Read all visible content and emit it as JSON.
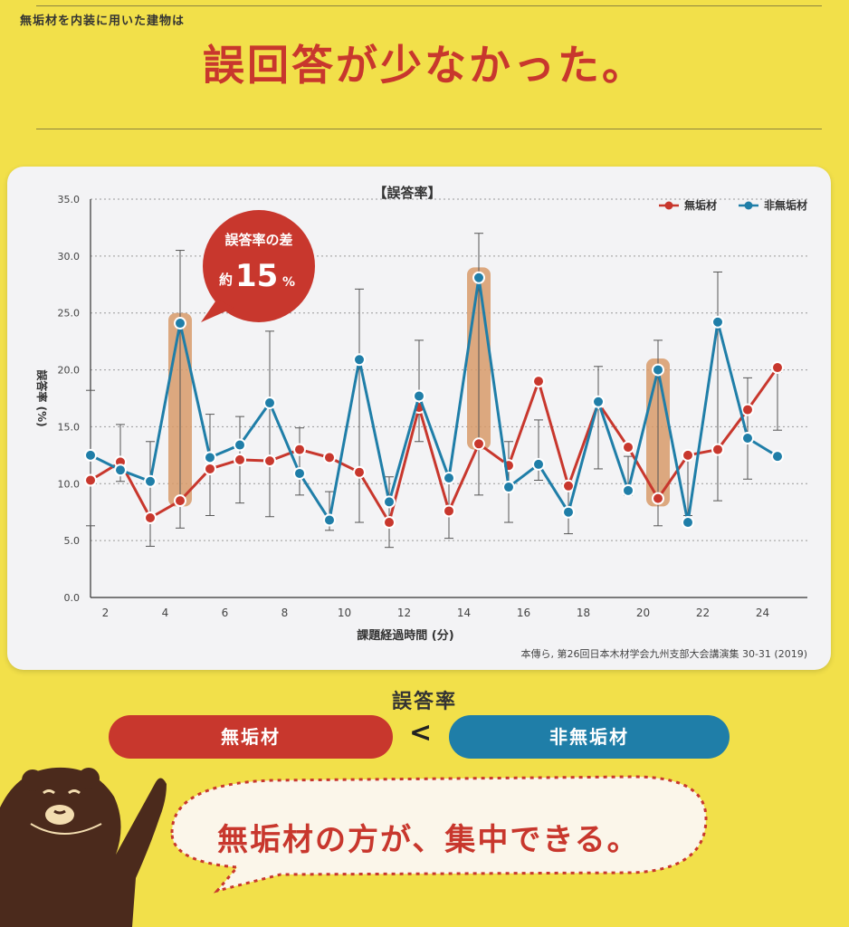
{
  "header": {
    "subtitle": "無垢材を内装に用いた建物は",
    "headline": "誤回答が少なかった。"
  },
  "colors": {
    "red": "#c8372d",
    "blue": "#1f7ea8",
    "highlight": "#d79a6a",
    "background": "#f2e04a"
  },
  "chart_data": {
    "type": "line",
    "title": "【誤答率】",
    "xlabel": "課題経過時間 (分)",
    "ylabel": "誤答率 (%)",
    "ylim": [
      0,
      35
    ],
    "xlim": [
      1.5,
      25.5
    ],
    "yticks": [
      "0.0",
      "5.0",
      "10.0",
      "15.0",
      "20.0",
      "25.0",
      "30.0",
      "35.0"
    ],
    "xticks": [
      2,
      4,
      6,
      8,
      10,
      12,
      14,
      16,
      18,
      20,
      22,
      24
    ],
    "grid": true,
    "legend_position": "top-right",
    "x": [
      1.5,
      2.5,
      3.5,
      4.5,
      5.5,
      6.5,
      7.5,
      8.5,
      9.5,
      10.5,
      11.5,
      12.5,
      13.5,
      14.5,
      15.5,
      16.5,
      17.5,
      18.5,
      19.5,
      20.5,
      21.5,
      22.5,
      23.5,
      24.5
    ],
    "series": [
      {
        "name": "無垢材",
        "color": "#c8372d",
        "values": [
          10.3,
          11.9,
          7.0,
          8.5,
          11.3,
          12.1,
          12.0,
          13.0,
          12.3,
          11.0,
          6.6,
          16.7,
          7.6,
          13.5,
          11.6,
          19.0,
          9.8,
          17.1,
          13.2,
          8.7,
          12.5,
          13.0,
          16.5,
          20.2
        ]
      },
      {
        "name": "非無垢材",
        "color": "#1f7ea8",
        "values": [
          12.5,
          11.2,
          10.2,
          24.1,
          12.3,
          13.4,
          17.1,
          10.9,
          6.8,
          20.9,
          8.4,
          17.7,
          10.5,
          28.1,
          9.7,
          11.7,
          7.5,
          17.2,
          9.4,
          20.0,
          6.6,
          24.2,
          14.0,
          12.4
        ]
      }
    ],
    "error_bars": [
      [
        6.3,
        18.2
      ],
      [
        10.2,
        15.2
      ],
      [
        4.5,
        13.7
      ],
      [
        6.1,
        30.5
      ],
      [
        7.2,
        16.1
      ],
      [
        8.3,
        15.9
      ],
      [
        7.1,
        23.4
      ],
      [
        9.0,
        14.9
      ],
      [
        5.9,
        9.3
      ],
      [
        6.6,
        27.1
      ],
      [
        4.4,
        10.6
      ],
      [
        13.7,
        22.6
      ],
      [
        5.2,
        10.4
      ],
      [
        9.0,
        32.0
      ],
      [
        6.6,
        13.7
      ],
      [
        10.3,
        15.6
      ],
      [
        5.6,
        10.2
      ],
      [
        11.3,
        20.3
      ],
      [
        9.0,
        12.4
      ],
      [
        6.3,
        22.6
      ],
      [
        7.2,
        12.5
      ],
      [
        8.5,
        28.6
      ],
      [
        10.4,
        19.3
      ],
      [
        14.7,
        19.8
      ]
    ],
    "highlights": [
      {
        "x": 4.5,
        "from": 8.0,
        "to": 25.0
      },
      {
        "x": 14.5,
        "from": 13.0,
        "to": 29.0
      },
      {
        "x": 20.5,
        "from": 8.0,
        "to": 21.0
      }
    ],
    "callout": {
      "line1": "誤答率の差",
      "prefix": "約",
      "value": "15",
      "unit": "%"
    },
    "source": "本傳ら, 第26回日本木材学会九州支部大会講演集 30-31 (2019)"
  },
  "comparison": {
    "title": "誤答率",
    "left": "無垢材",
    "operator": "<",
    "right": "非無垢材"
  },
  "bubble": {
    "text": "無垢材の方が、集中できる。"
  }
}
